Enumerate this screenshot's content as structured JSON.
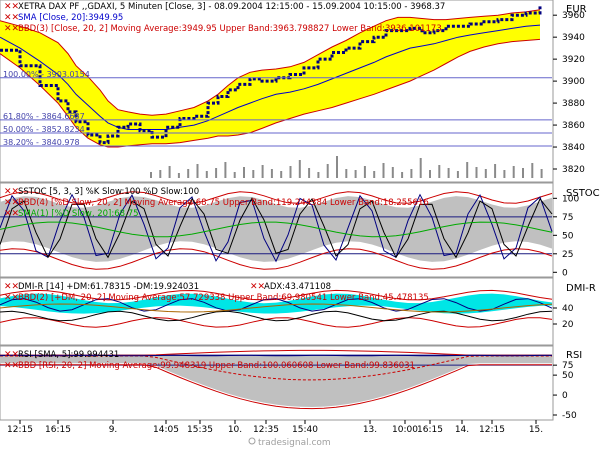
{
  "chart_data": [
    {
      "type": "line",
      "panel": "price",
      "legend": [
        {
          "text": "XETRA DAX PF    ,,GDAXI, 5 Minuten [Close, 3] - 08.09.2004 12:15:00 - 15.09.2004 10:15:00 - 3968.37",
          "color": "#000000"
        },
        {
          "text": "SMA [Close, 20]:3949.95",
          "color": "#0000cc"
        },
        {
          "text": "BBD(3) [Close, 20, 2] Moving Average:3949.95 Upper Band:3963.798827 Lower Band:3936.101173",
          "color": "#cc0000"
        }
      ],
      "unit": "EUR",
      "ylim": [
        3810,
        3972
      ],
      "yticks": [
        3820,
        3840,
        3860,
        3880,
        3900,
        3920,
        3940,
        3960
      ],
      "fib_levels": [
        {
          "label": "100.00% - 3903.0154",
          "value": 3903.0154
        },
        {
          "label": "61.80% - 3864.6687",
          "value": 3864.6687
        },
        {
          "label": "50.00% - 3852.8234",
          "value": 3852.8234
        },
        {
          "label": "38.20% - 3840.978",
          "value": 3840.978
        }
      ],
      "price_x": [
        0,
        20,
        40,
        58,
        68,
        76,
        88,
        100,
        108,
        118,
        128,
        140,
        152,
        166,
        180,
        194,
        208,
        218,
        228,
        238,
        250,
        262,
        276,
        290,
        304,
        318,
        332,
        346,
        360,
        374,
        386,
        398,
        410,
        422,
        434,
        446,
        458,
        470,
        484,
        498,
        512,
        526,
        540
      ],
      "price": [
        3928,
        3914,
        3896,
        3882,
        3872,
        3863,
        3851,
        3844,
        3850,
        3858,
        3861,
        3855,
        3849,
        3858,
        3866,
        3868,
        3880,
        3886,
        3892,
        3897,
        3902,
        3900,
        3903,
        3906,
        3912,
        3920,
        3926,
        3930,
        3936,
        3940,
        3946,
        3946,
        3948,
        3944,
        3946,
        3950,
        3950,
        3952,
        3954,
        3956,
        3960,
        3962,
        3968
      ],
      "sma": [
        3940,
        3930,
        3918,
        3906,
        3897,
        3888,
        3878,
        3868,
        3862,
        3858,
        3856,
        3856,
        3856,
        3856,
        3858,
        3860,
        3864,
        3868,
        3872,
        3876,
        3880,
        3884,
        3888,
        3890,
        3893,
        3897,
        3902,
        3907,
        3912,
        3917,
        3922,
        3926,
        3930,
        3932,
        3934,
        3937,
        3940,
        3942,
        3944,
        3946,
        3948,
        3950,
        3951
      ],
      "upper_band": [
        3955,
        3950,
        3944,
        3935,
        3925,
        3914,
        3904,
        3892,
        3882,
        3874,
        3872,
        3870,
        3869,
        3870,
        3873,
        3876,
        3882,
        3888,
        3896,
        3903,
        3908,
        3910,
        3911,
        3913,
        3917,
        3924,
        3931,
        3937,
        3944,
        3950,
        3955,
        3958,
        3958,
        3957,
        3956,
        3956,
        3957,
        3958,
        3959,
        3960,
        3962,
        3963,
        3965
      ],
      "lower_band": [
        3925,
        3912,
        3896,
        3880,
        3868,
        3858,
        3848,
        3842,
        3840,
        3840,
        3841,
        3842,
        3843,
        3843,
        3844,
        3846,
        3848,
        3850,
        3850,
        3851,
        3853,
        3857,
        3862,
        3866,
        3870,
        3873,
        3876,
        3880,
        3884,
        3888,
        3892,
        3896,
        3900,
        3905,
        3910,
        3916,
        3922,
        3927,
        3931,
        3934,
        3936,
        3937,
        3938
      ]
    },
    {
      "type": "line",
      "panel": "stochastic",
      "legend": [
        {
          "text": "SSTOC [5, 3, 3] %K Slow:100 %D Slow:100",
          "color": "#000000"
        },
        {
          "text": "BBD(4) [%D Slow, 20, 2] Moving Average:68.75 Upper Band:119.244384 Lower Band:18.255616",
          "color": "#cc0000"
        },
        {
          "text": "SMA(1) [%D Slow, 20]:68.75",
          "color": "#00aa00"
        }
      ],
      "unit": "SSTOC",
      "ylim": [
        -5,
        118
      ],
      "yticks": [
        0,
        25,
        50,
        75,
        100
      ],
      "tick_labels": [
        "0",
        "25",
        "50",
        "75",
        "100"
      ]
    },
    {
      "type": "line",
      "panel": "dmi",
      "legend": [
        {
          "text": "DMI-R [14] +DM:61.78315 -DM:19.924031",
          "color": "#000000"
        },
        {
          "text": "ADX:43.471108",
          "color": "#000000"
        },
        {
          "text": "BBD(2) [+DM, 20, 2] Moving Average:57.729338 Upper Band:69.980541 Lower Band:45.478135",
          "color": "#cc0000"
        }
      ],
      "unit": "DMI-R",
      "ylim": [
        -5,
        75
      ],
      "yticks": [
        20,
        40
      ],
      "tick_labels": [
        "20",
        "40"
      ]
    },
    {
      "type": "line",
      "panel": "rsi",
      "legend": [
        {
          "text": "RSI [SMA, 5]:99.994431",
          "color": "#000000"
        },
        {
          "text": "BBD [RSI, 20, 2] Moving Average:99.948319 Upper Band:100.060608 Lower Band:99.836031",
          "color": "#cc0000"
        }
      ],
      "unit": "RSI",
      "ylim": [
        -60,
        118
      ],
      "yticks": [
        -50,
        0,
        50,
        75
      ],
      "tick_labels": [
        "-50",
        "0",
        "50",
        "75"
      ]
    }
  ],
  "x_axis": {
    "tick_labels": [
      "12:15",
      "16:15",
      "9.",
      "14:05",
      "15:35",
      "10.",
      "12:35",
      "15:40",
      "13.",
      "10:00",
      "16:15",
      "14.",
      "12:15",
      "15."
    ]
  },
  "colors": {
    "band_fill": "#ffff00",
    "band_line": "#cc0000",
    "price_line": "#000080",
    "sma_line": "#0000cc",
    "fib_line": "#6666cc",
    "gray_band": "#c0c0c0",
    "cyan_band": "#00e6e6",
    "ref_line": "#1a1a80"
  },
  "footer": {
    "brand": "tradesignal.com"
  }
}
